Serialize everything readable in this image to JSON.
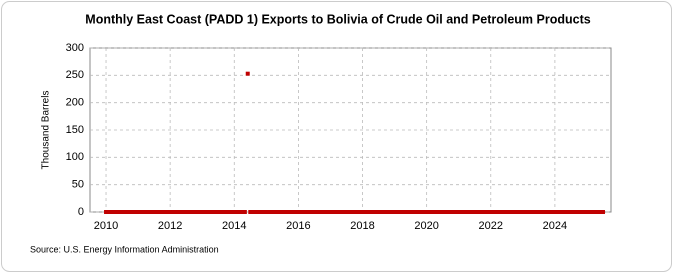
{
  "chart_data": {
    "type": "scatter",
    "title": "Monthly East Coast (PADD 1) Exports to Bolivia of Crude Oil and Petroleum Products",
    "y_label": "Thousand Barrels",
    "source": "Source: U.S. Energy Information Administration",
    "color": "#c00000",
    "x": [
      2010,
      2010.08,
      2010.17,
      2010.25,
      2010.33,
      2010.42,
      2010.5,
      2010.58,
      2010.67,
      2010.75,
      2010.83,
      2010.92,
      2011,
      2011.08,
      2011.17,
      2011.25,
      2011.33,
      2011.42,
      2011.5,
      2011.58,
      2011.67,
      2011.75,
      2011.83,
      2011.92,
      2012,
      2012.08,
      2012.17,
      2012.25,
      2012.33,
      2012.42,
      2012.5,
      2012.58,
      2012.67,
      2012.75,
      2012.83,
      2012.92,
      2013,
      2013.08,
      2013.17,
      2013.25,
      2013.33,
      2013.42,
      2013.5,
      2013.58,
      2013.67,
      2013.75,
      2013.83,
      2013.92,
      2014,
      2014.08,
      2014.17,
      2014.25,
      2014.33,
      2014.42,
      2014.5,
      2014.58,
      2014.67,
      2014.75,
      2014.83,
      2014.92,
      2015,
      2015.08,
      2015.17,
      2015.25,
      2015.33,
      2015.42,
      2015.5,
      2015.58,
      2015.67,
      2015.75,
      2015.83,
      2015.92,
      2016,
      2016.08,
      2016.17,
      2016.25,
      2016.33,
      2016.42,
      2016.5,
      2016.58,
      2016.67,
      2016.75,
      2016.83,
      2016.92,
      2017,
      2017.08,
      2017.17,
      2017.25,
      2017.33,
      2017.42,
      2017.5,
      2017.58,
      2017.67,
      2017.75,
      2017.83,
      2017.92,
      2018,
      2018.08,
      2018.17,
      2018.25,
      2018.33,
      2018.42,
      2018.5,
      2018.58,
      2018.67,
      2018.75,
      2018.83,
      2018.92,
      2019,
      2019.08,
      2019.17,
      2019.25,
      2019.33,
      2019.42,
      2019.5,
      2019.58,
      2019.67,
      2019.75,
      2019.83,
      2019.92,
      2020,
      2020.08,
      2020.17,
      2020.25,
      2020.33,
      2020.42,
      2020.5,
      2020.58,
      2020.67,
      2020.75,
      2020.83,
      2020.92,
      2021,
      2021.08,
      2021.17,
      2021.25,
      2021.33,
      2021.42,
      2021.5,
      2021.58,
      2021.67,
      2021.75,
      2021.83,
      2021.92,
      2022,
      2022.08,
      2022.17,
      2022.25,
      2022.33,
      2022.42,
      2022.5,
      2022.58,
      2022.67,
      2022.75,
      2022.83,
      2022.92,
      2023,
      2023.08,
      2023.17,
      2023.25,
      2023.33,
      2023.42,
      2023.5,
      2023.58,
      2023.67,
      2023.75,
      2023.83,
      2023.92,
      2024,
      2024.08,
      2024.17,
      2024.25,
      2024.33,
      2024.42,
      2024.5,
      2024.58,
      2024.67,
      2024.75,
      2024.83,
      2024.92,
      2025,
      2025.08,
      2025.17,
      2025.25,
      2025.33,
      2025.42,
      2025.5
    ],
    "values": [
      0,
      0,
      0,
      0,
      0,
      0,
      0,
      0,
      0,
      0,
      0,
      0,
      0,
      0,
      0,
      0,
      0,
      0,
      0,
      0,
      0,
      0,
      0,
      0,
      0,
      0,
      0,
      0,
      0,
      0,
      0,
      0,
      0,
      0,
      0,
      0,
      0,
      0,
      0,
      0,
      0,
      0,
      0,
      0,
      0,
      0,
      0,
      0,
      0,
      0,
      0,
      0,
      0,
      253,
      0,
      0,
      0,
      0,
      0,
      0,
      0,
      0,
      0,
      0,
      0,
      0,
      0,
      0,
      0,
      0,
      0,
      0,
      0,
      0,
      0,
      0,
      0,
      0,
      0,
      0,
      0,
      0,
      0,
      0,
      0,
      0,
      0,
      0,
      0,
      0,
      0,
      0,
      0,
      0,
      0,
      0,
      0,
      0,
      0,
      0,
      0,
      0,
      0,
      0,
      0,
      0,
      0,
      0,
      0,
      0,
      0,
      0,
      0,
      0,
      0,
      0,
      0,
      0,
      0,
      0,
      0,
      0,
      0,
      0,
      0,
      0,
      0,
      0,
      0,
      0,
      0,
      0,
      0,
      0,
      0,
      0,
      0,
      0,
      0,
      0,
      0,
      0,
      0,
      0,
      0,
      0,
      0,
      0,
      0,
      0,
      0,
      0,
      0,
      0,
      0,
      0,
      0,
      0,
      0,
      0,
      0,
      0,
      0,
      0,
      0,
      0,
      0,
      0,
      0,
      0,
      0,
      0,
      0,
      0,
      0,
      0,
      0,
      0,
      0,
      0,
      0,
      0,
      0,
      0,
      0,
      0,
      0
    ],
    "xlim": [
      2009.5,
      2025.75
    ],
    "xticks": [
      2010,
      2012,
      2014,
      2016,
      2018,
      2020,
      2022,
      2024
    ],
    "ylim": [
      0,
      300
    ],
    "yticks": [
      0,
      50,
      100,
      150,
      200,
      250,
      300
    ],
    "grid": true
  }
}
